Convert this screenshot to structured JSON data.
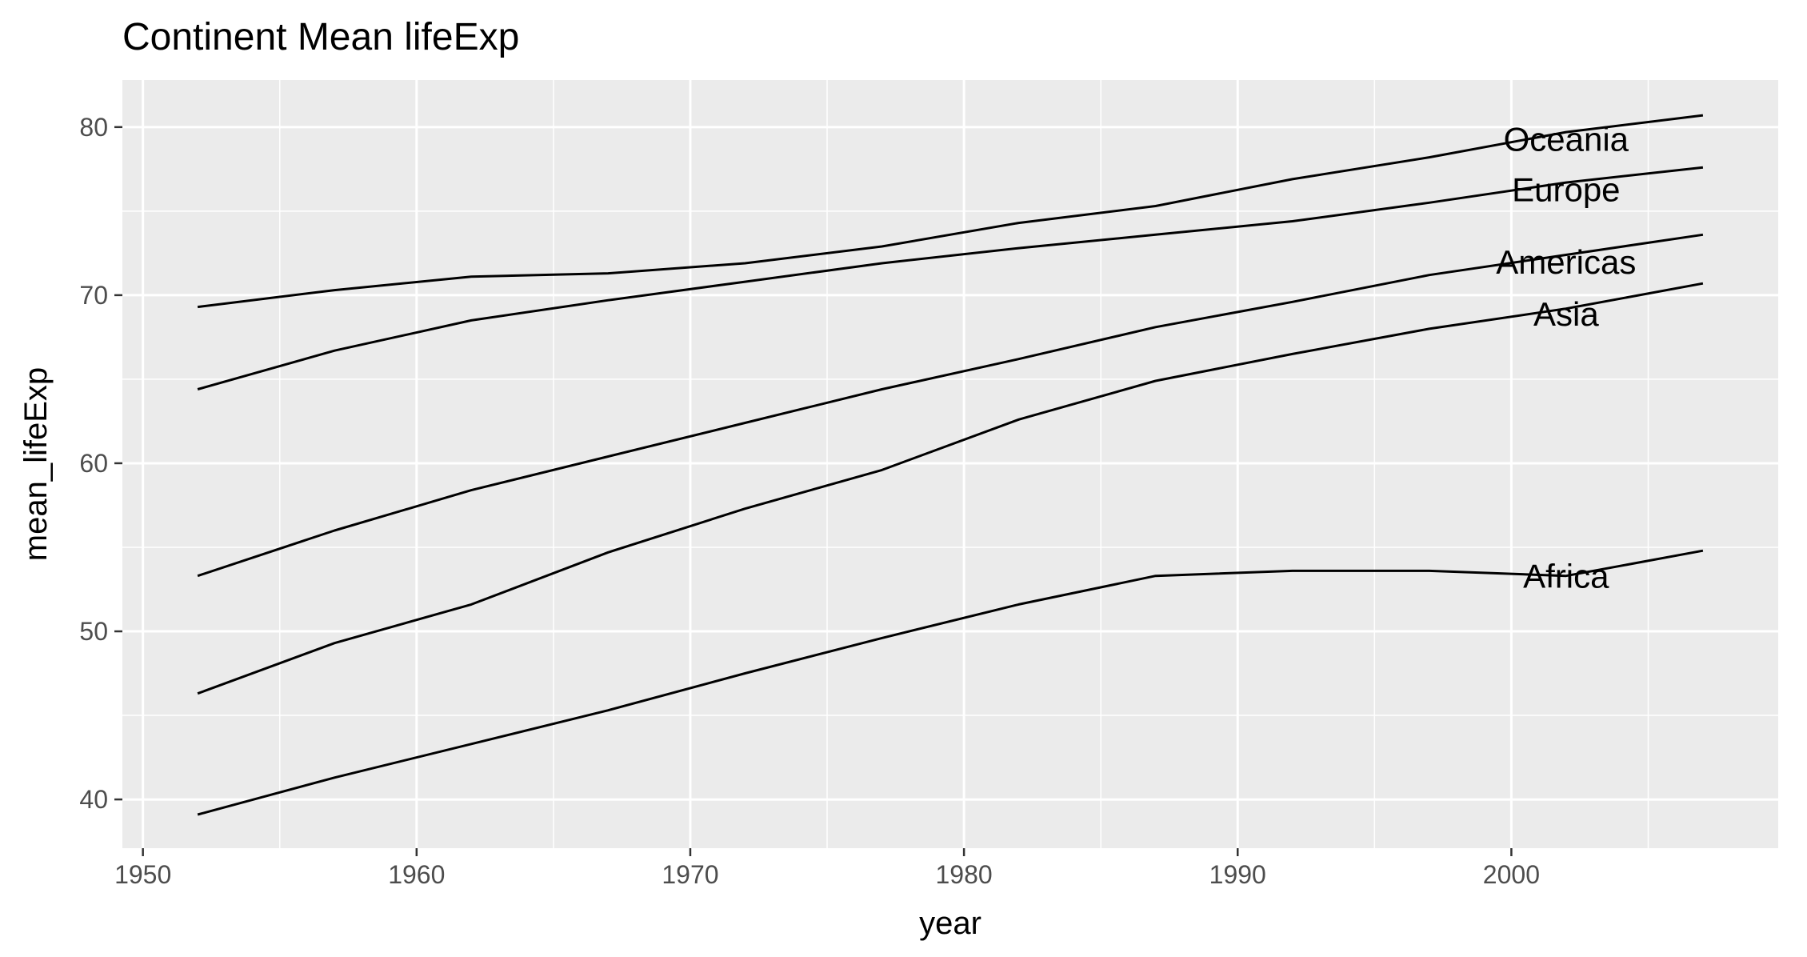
{
  "chart_data": {
    "type": "line",
    "title": "Continent Mean lifeExp",
    "xlabel": "year",
    "ylabel": "mean_lifeExp",
    "xlim": [
      1949.25,
      2009.75
    ],
    "ylim": [
      37.1,
      82.8
    ],
    "x_ticks": [
      1950,
      1960,
      1970,
      1980,
      1990,
      2000
    ],
    "y_ticks": [
      40,
      50,
      60,
      70,
      80
    ],
    "x_tick_labels": [
      "1950",
      "1960",
      "1970",
      "1980",
      "1990",
      "2000"
    ],
    "y_tick_labels": [
      "40",
      "50",
      "60",
      "70",
      "80"
    ],
    "grid": true,
    "x": [
      1952,
      1957,
      1962,
      1967,
      1972,
      1977,
      1982,
      1987,
      1992,
      1997,
      2002,
      2007
    ],
    "series": [
      {
        "name": "Africa",
        "label_at": [
          2002,
          53.3
        ],
        "values": [
          39.1,
          41.3,
          43.3,
          45.3,
          47.5,
          49.6,
          51.6,
          53.3,
          53.6,
          53.6,
          53.3,
          54.8
        ]
      },
      {
        "name": "Americas",
        "label_at": [
          2002,
          72.0
        ],
        "values": [
          53.3,
          56.0,
          58.4,
          60.4,
          62.4,
          64.4,
          66.2,
          68.1,
          69.6,
          71.2,
          72.4,
          73.6
        ]
      },
      {
        "name": "Asia",
        "label_at": [
          2002,
          68.9
        ],
        "values": [
          46.3,
          49.3,
          51.6,
          54.7,
          57.3,
          59.6,
          62.6,
          64.9,
          66.5,
          68.0,
          69.2,
          70.7
        ]
      },
      {
        "name": "Europe",
        "label_at": [
          2002,
          76.3
        ],
        "values": [
          64.4,
          66.7,
          68.5,
          69.7,
          70.8,
          71.9,
          72.8,
          73.6,
          74.4,
          75.5,
          76.7,
          77.6
        ]
      },
      {
        "name": "Oceania",
        "label_at": [
          2002,
          79.3
        ],
        "values": [
          69.3,
          70.3,
          71.1,
          71.3,
          71.9,
          72.9,
          74.3,
          75.3,
          76.9,
          78.2,
          79.7,
          80.7
        ]
      }
    ]
  }
}
